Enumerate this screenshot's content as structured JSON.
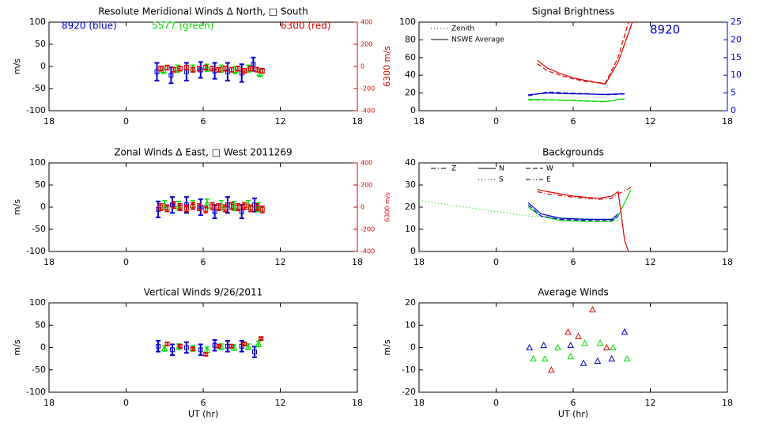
{
  "chart_data": [
    {
      "type": "scatter",
      "title": "Resolute Meridional Winds Δ North, □ South",
      "ylabel": "m/s",
      "y2label": "6300 m/s",
      "y2color": "#dd0000",
      "xlim": [
        -6,
        18
      ],
      "xticks": [
        {
          "value": -6,
          "label": "18"
        },
        0,
        6,
        12,
        18
      ],
      "ylim": [
        -100,
        100
      ],
      "yticks": [
        -100,
        -50,
        0,
        50,
        100
      ],
      "y2lim": [
        -400,
        400
      ],
      "y2ticks": [
        -400,
        -200,
        0,
        200,
        400
      ],
      "annotations": [
        {
          "text": "8920 (blue)",
          "color": "#0000cc"
        },
        {
          "text": "5577 (green)",
          "color": "#00dd00"
        },
        {
          "text": "6300 (red)",
          "color": "#dd0000"
        }
      ],
      "series": [
        {
          "color": "#0000cc",
          "marker": "square",
          "x": [
            2.4,
            3.5,
            4.7,
            5.8,
            6.9,
            7.9,
            9.0,
            9.9
          ],
          "values": [
            -12,
            -20,
            -12,
            -8,
            -10,
            -12,
            -15,
            5
          ],
          "errors": [
            20,
            18,
            20,
            18,
            18,
            20,
            20,
            15
          ]
        },
        {
          "color": "#00dd00",
          "marker": "triangle",
          "x": [
            2.9,
            4.0,
            5.2,
            6.3,
            7.4,
            8.5,
            9.5,
            10.4
          ],
          "values": [
            -8,
            -5,
            -5,
            -3,
            -5,
            -8,
            -5,
            -15
          ],
          "errors": [
            8,
            8,
            8,
            8,
            8,
            8,
            8,
            8
          ]
        },
        {
          "color": "#dd0000",
          "marker": "square",
          "axis": "y2",
          "x": [
            2.7,
            3.2,
            3.7,
            4.2,
            4.7,
            5.2,
            5.7,
            6.2,
            6.7,
            7.2,
            7.7,
            8.2,
            8.7,
            9.2,
            9.7,
            10.2,
            10.6
          ],
          "values": [
            -20,
            -10,
            -30,
            -20,
            -10,
            -30,
            -20,
            -10,
            -20,
            -30,
            -20,
            -30,
            -20,
            -40,
            -20,
            -30,
            -40
          ],
          "errors": [
            20,
            20,
            20,
            20,
            20,
            20,
            20,
            20,
            20,
            20,
            20,
            20,
            20,
            20,
            20,
            20,
            20
          ]
        }
      ]
    },
    {
      "type": "scatter",
      "title": "Zonal Winds Δ East, □ West 2011269",
      "ylabel": "m/s",
      "y2label": "6300 m/s",
      "y2color": "#dd0000",
      "xlim": [
        -6,
        18
      ],
      "xticks": [
        {
          "value": -6,
          "label": "18"
        },
        0,
        6,
        12,
        18
      ],
      "ylim": [
        -100,
        100
      ],
      "yticks": [
        -100,
        -50,
        0,
        50,
        100
      ],
      "y2lim": [
        -400,
        400
      ],
      "y2ticks": [
        -400,
        -200,
        0,
        200,
        400
      ],
      "series": [
        {
          "color": "#0000cc",
          "marker": "square",
          "x": [
            2.5,
            3.6,
            4.7,
            5.8,
            6.9,
            7.9,
            9.0,
            10.0
          ],
          "values": [
            -5,
            5,
            5,
            0,
            -10,
            5,
            -10,
            5
          ],
          "errors": [
            18,
            18,
            18,
            18,
            15,
            18,
            15,
            15
          ]
        },
        {
          "color": "#00dd00",
          "marker": "triangle",
          "x": [
            3.0,
            4.1,
            5.2,
            6.3,
            7.4,
            8.4,
            9.5,
            10.3
          ],
          "values": [
            5,
            3,
            5,
            8,
            5,
            3,
            5,
            0
          ],
          "errors": [
            10,
            10,
            10,
            10,
            10,
            10,
            10,
            10
          ]
        },
        {
          "color": "#dd0000",
          "marker": "square",
          "axis": "y2",
          "x": [
            2.7,
            3.2,
            3.7,
            4.2,
            4.7,
            5.2,
            5.7,
            6.2,
            6.7,
            7.2,
            7.7,
            8.2,
            8.7,
            9.2,
            9.7,
            10.2,
            10.6
          ],
          "values": [
            0,
            -10,
            20,
            0,
            -10,
            10,
            0,
            -20,
            10,
            0,
            -10,
            10,
            0,
            10,
            -10,
            0,
            -20
          ],
          "errors": [
            30,
            30,
            30,
            30,
            30,
            30,
            30,
            30,
            30,
            30,
            30,
            30,
            30,
            30,
            30,
            30,
            30
          ]
        }
      ]
    },
    {
      "type": "scatter",
      "title": "Vertical Winds 9/26/2011",
      "ylabel": "m/s",
      "xlabel": "UT (hr)",
      "xlim": [
        -6,
        18
      ],
      "xticks": [
        {
          "value": -6,
          "label": "18"
        },
        0,
        6,
        12,
        18
      ],
      "ylim": [
        -100,
        100
      ],
      "yticks": [
        -100,
        -50,
        0,
        50,
        100
      ],
      "series": [
        {
          "color": "#0000cc",
          "marker": "square",
          "x": [
            2.5,
            3.6,
            4.7,
            5.8,
            6.9,
            7.9,
            9.0,
            10.0
          ],
          "values": [
            3,
            -5,
            0,
            -5,
            5,
            3,
            3,
            -10
          ],
          "errors": [
            12,
            12,
            12,
            12,
            12,
            12,
            12,
            12
          ]
        },
        {
          "color": "#00dd00",
          "marker": "triangle",
          "x": [
            3.0,
            4.1,
            5.2,
            6.3,
            7.4,
            8.4,
            9.5,
            10.3
          ],
          "values": [
            -2,
            2,
            -2,
            -5,
            2,
            0,
            2,
            8
          ],
          "errors": [
            6,
            6,
            6,
            6,
            6,
            6,
            6,
            6
          ]
        },
        {
          "color": "#dd0000",
          "marker": "square",
          "x": [
            3.2,
            4.2,
            5.2,
            6.2,
            7.2,
            8.2,
            9.2,
            10.5
          ],
          "values": [
            8,
            3,
            -3,
            -15,
            3,
            3,
            8,
            20
          ],
          "errors": [
            3,
            3,
            3,
            3,
            3,
            3,
            3,
            3
          ]
        }
      ]
    },
    {
      "type": "line",
      "title": "Signal Brightness",
      "y2color": "#0000cc",
      "xlim": [
        -6,
        18
      ],
      "xticks": [
        {
          "value": -6,
          "label": "18"
        },
        0,
        6,
        12,
        18
      ],
      "ylim": [
        0,
        100
      ],
      "yticks": [
        0,
        20,
        40,
        60,
        80,
        100
      ],
      "y2lim": [
        0,
        25
      ],
      "y2ticks": [
        0,
        5,
        10,
        15,
        20,
        25
      ],
      "annotations": [
        {
          "text": "8920",
          "color": "#0000cc"
        }
      ],
      "legend": [
        {
          "label": "Zenith",
          "dash": "dotted"
        },
        {
          "label": "NSWE Average",
          "dash": "solid"
        }
      ],
      "series": [
        {
          "color": "#dd0000",
          "dash": "solid",
          "x": [
            3.2,
            4,
            5,
            6,
            7,
            8.5,
            9.5,
            10.6
          ],
          "values": [
            57,
            48,
            42,
            37,
            34,
            30,
            55,
            100
          ]
        },
        {
          "color": "#dd0000",
          "dash": "dashed",
          "x": [
            3.2,
            4,
            5,
            6,
            7,
            8.5,
            9.5,
            10.3
          ],
          "values": [
            53,
            45,
            40,
            36,
            33,
            31,
            60,
            100
          ]
        },
        {
          "color": "#0000cc",
          "dash": "solid",
          "axis": "y2",
          "x": [
            2.5,
            4,
            5.5,
            7,
            8.5,
            10
          ],
          "values": [
            4.5,
            5,
            4.8,
            4.7,
            4.6,
            4.8
          ]
        },
        {
          "color": "#0000cc",
          "dash": "dashed",
          "axis": "y2",
          "x": [
            2.5,
            4,
            5.5,
            7,
            8.5,
            10
          ],
          "values": [
            4.2,
            5.3,
            5,
            4.8,
            4.5,
            4.7
          ]
        },
        {
          "color": "#00dd00",
          "dash": "solid",
          "axis": "y2",
          "x": [
            2.5,
            4,
            5.5,
            7,
            8.5,
            10
          ],
          "values": [
            3.2,
            3.1,
            3,
            2.8,
            2.6,
            3.3
          ]
        },
        {
          "color": "#00dd00",
          "dash": "dashed",
          "axis": "y2",
          "x": [
            2.5,
            4,
            5.5,
            7,
            8.5,
            10
          ],
          "values": [
            3,
            3,
            2.9,
            2.7,
            2.5,
            3.4
          ]
        }
      ]
    },
    {
      "type": "line",
      "title": "Backgrounds",
      "xlim": [
        -6,
        18
      ],
      "xticks": [
        {
          "value": -6,
          "label": "18"
        },
        0,
        6,
        12,
        18
      ],
      "ylim": [
        0,
        40
      ],
      "yticks": [
        0,
        10,
        20,
        30,
        40
      ],
      "legend": [
        {
          "label": "Z",
          "dash": "dashdot"
        },
        {
          "label": "N",
          "dash": "solid"
        },
        {
          "label": "W",
          "dash": "dashed"
        },
        {
          "label": "S",
          "dash": "dotted"
        },
        {
          "label": "E",
          "dash": "dashdotdot"
        }
      ],
      "series": [
        {
          "color": "#00dd00",
          "dash": "dotted",
          "x": [
            -6,
            2.5,
            9.5
          ],
          "values": [
            23,
            16,
            14
          ]
        },
        {
          "color": "#00dd00",
          "dash": "solid",
          "x": [
            2.5,
            3.5,
            5,
            7,
            9,
            9.5,
            10.5
          ],
          "values": [
            20,
            16,
            14,
            13.5,
            13.5,
            16,
            28
          ]
        },
        {
          "color": "#0000cc",
          "dash": "solid",
          "x": [
            2.5,
            3.5,
            5,
            7,
            9,
            9.5
          ],
          "values": [
            22,
            17,
            15,
            14.5,
            14.5,
            17
          ]
        },
        {
          "color": "#0000cc",
          "dash": "dashed",
          "x": [
            2.5,
            3.5,
            5,
            7,
            9,
            9.5
          ],
          "values": [
            21,
            16,
            14.5,
            14,
            14,
            16
          ]
        },
        {
          "color": "#dd0000",
          "dash": "solid",
          "x": [
            3.2,
            4,
            6,
            8,
            9,
            9.5,
            10,
            10.3
          ],
          "values": [
            28,
            27,
            25,
            24,
            25,
            27,
            5,
            0
          ]
        },
        {
          "color": "#dd0000",
          "dash": "dashdot",
          "x": [
            3.2,
            4,
            6,
            8,
            9,
            9.5,
            10.2,
            10.5
          ],
          "values": [
            27,
            26,
            24.5,
            23.5,
            24,
            26,
            28,
            29
          ]
        }
      ]
    },
    {
      "type": "scatter",
      "title": "Average Winds",
      "ylabel": "m/s",
      "xlabel": "UT (hr)",
      "xlim": [
        -6,
        18
      ],
      "xticks": [
        {
          "value": -6,
          "label": "18"
        },
        0,
        6,
        12,
        18
      ],
      "ylim": [
        -20,
        20
      ],
      "yticks": [
        -20,
        -10,
        0,
        10,
        20
      ],
      "series": [
        {
          "color": "#0000cc",
          "marker": "triangle",
          "x": [
            2.6,
            3.7,
            5.8,
            6.8,
            7.9,
            9.0,
            10.0
          ],
          "values": [
            0,
            1,
            1,
            -7,
            -6,
            -5,
            7
          ]
        },
        {
          "color": "#00dd00",
          "marker": "triangle",
          "x": [
            2.9,
            3.8,
            4.8,
            5.8,
            6.9,
            8.1,
            9.1,
            10.2
          ],
          "values": [
            -5,
            -5,
            0,
            -4,
            2,
            2,
            0,
            -5
          ]
        },
        {
          "color": "#dd0000",
          "marker": "triangle",
          "x": [
            4.3,
            5.6,
            6.4,
            7.5,
            8.6
          ],
          "values": [
            -10,
            7,
            5,
            17,
            0
          ]
        }
      ]
    }
  ]
}
